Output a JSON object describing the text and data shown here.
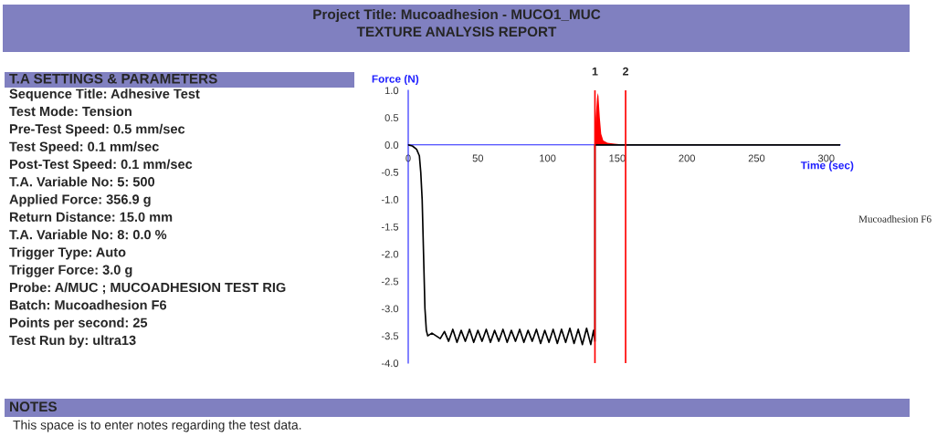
{
  "chart_data": {
    "type": "line",
    "title": "Project Title: Mucoadhesion - MUCO1_MUC",
    "subtitle": "TEXTURE ANALYSIS REPORT",
    "xlabel": "Time (sec)",
    "ylabel": "Force (N)",
    "xlim": [
      0,
      310
    ],
    "ylim": [
      -4,
      1
    ],
    "xticks": [
      0,
      50,
      100,
      150,
      200,
      250,
      300
    ],
    "yticks": [
      {
        "value": -4,
        "label": "-4.0"
      },
      {
        "value": -3.5,
        "label": "-3.5"
      },
      {
        "value": -3,
        "label": "-3.0"
      },
      {
        "value": -2.5,
        "label": "-2.5"
      },
      {
        "value": -2,
        "label": "-2.0"
      },
      {
        "value": -1.5,
        "label": "-1.5"
      },
      {
        "value": -1,
        "label": "-1.0"
      },
      {
        "value": -0.5,
        "label": "-0.5"
      },
      {
        "value": 0,
        "label": "0.0"
      },
      {
        "value": 0.5,
        "label": "0.5"
      },
      {
        "value": 1,
        "label": "1.0"
      }
    ],
    "grid": false,
    "legend": false,
    "series": [
      {
        "color": "#000000",
        "x": [
          0,
          3,
          6,
          8,
          9,
          10,
          11,
          12,
          13,
          14,
          17,
          20,
          23,
          26,
          29,
          32,
          35,
          38,
          41,
          44,
          47,
          50,
          53,
          56,
          59,
          62,
          65,
          68,
          71,
          74,
          77,
          80,
          83,
          86,
          89,
          92,
          95,
          98,
          101,
          104,
          107,
          110,
          113,
          116,
          119,
          122,
          125,
          128,
          131,
          133,
          134,
          134,
          156,
          310
        ],
        "values": [
          0,
          -0.02,
          -0.08,
          -0.2,
          -0.5,
          -1.0,
          -2.0,
          -3.0,
          -3.4,
          -3.5,
          -3.45,
          -3.5,
          -3.55,
          -3.42,
          -3.6,
          -3.38,
          -3.62,
          -3.4,
          -3.6,
          -3.38,
          -3.62,
          -3.4,
          -3.6,
          -3.38,
          -3.62,
          -3.4,
          -3.6,
          -3.38,
          -3.62,
          -3.4,
          -3.6,
          -3.38,
          -3.62,
          -3.4,
          -3.6,
          -3.38,
          -3.64,
          -3.4,
          -3.62,
          -3.38,
          -3.64,
          -3.38,
          -3.62,
          -3.36,
          -3.64,
          -3.38,
          -3.66,
          -3.36,
          -3.66,
          -3.4,
          -3.6,
          0,
          0,
          0
        ]
      },
      {
        "type": "area",
        "color": "#ff0000",
        "x": [
          134,
          134.5,
          135.5,
          136,
          136.5,
          137.5,
          138.5,
          140,
          143,
          148,
          153,
          156
        ],
        "values": [
          0,
          0.5,
          0.85,
          0.95,
          0.9,
          0.5,
          0.2,
          0.08,
          0.04,
          0.02,
          0.01,
          0
        ]
      }
    ],
    "ref_lines": [
      {
        "axis": "x",
        "value": 134,
        "color": "#ff0000"
      },
      {
        "axis": "x",
        "value": 156,
        "color": "#ff0000"
      }
    ],
    "annotations": [
      "T.A SETTINGS & PARAMETERS",
      "Sequence Title: Adhesive Test",
      "Test Mode: Tension",
      "Pre-Test Speed: 0.5 mm/sec",
      "Test Speed: 0.1 mm/sec",
      "Post-Test Speed: 0.1 mm/sec",
      "T.A. Variable No: 5: 500",
      "Applied Force: 356.9 g",
      "Return Distance: 15.0 mm",
      "T.A. Variable No: 8: 0.0 %",
      "Trigger Type: Auto",
      "Trigger Force: 3.0 g",
      "Probe: A/MUC ; MUCOADHESION TEST RIG",
      "Batch: Mucoadhesion F6",
      "Points per second: 25",
      "Test Run by: ultra13",
      "Mucoadhesion F6",
      "NOTES",
      "This space is to enter notes regarding the test data.",
      {
        "text": "1",
        "x": 134,
        "y": 1
      },
      {
        "text": "2",
        "x": 156,
        "y": 1
      }
    ]
  }
}
